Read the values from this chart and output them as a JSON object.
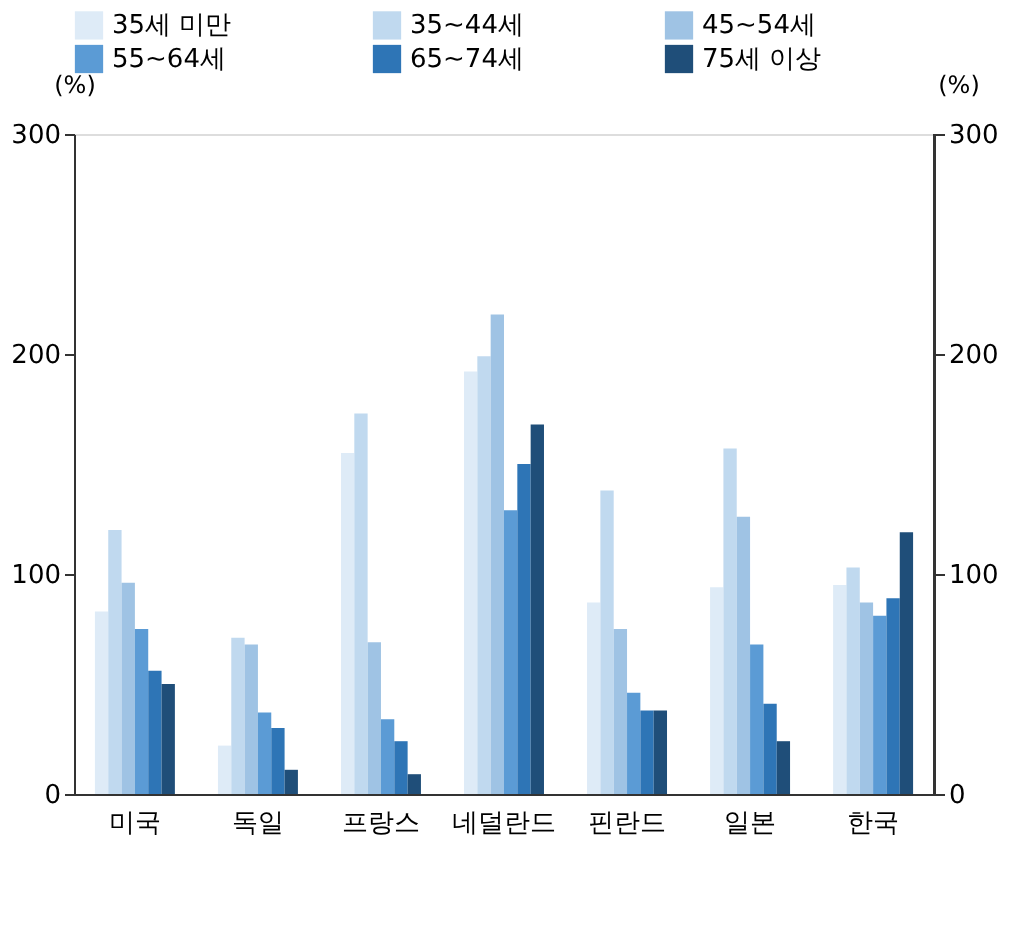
{
  "chart_data": {
    "type": "bar",
    "categories": [
      "미국",
      "독일",
      "프랑스",
      "네덜란드",
      "핀란드",
      "일본",
      "한국"
    ],
    "series": [
      {
        "name": "35세 미만",
        "color": "#deebf7",
        "values": [
          83,
          22,
          155,
          192,
          87,
          94,
          95
        ]
      },
      {
        "name": "35~44세",
        "color": "#c0d9ef",
        "values": [
          120,
          71,
          173,
          199,
          138,
          157,
          103
        ]
      },
      {
        "name": "45~54세",
        "color": "#9fc3e4",
        "values": [
          96,
          68,
          69,
          218,
          75,
          126,
          87
        ]
      },
      {
        "name": "55~64세",
        "color": "#5b9bd5",
        "values": [
          75,
          37,
          34,
          129,
          46,
          68,
          81
        ]
      },
      {
        "name": "65~74세",
        "color": "#2e75b6",
        "values": [
          56,
          30,
          24,
          150,
          38,
          41,
          89
        ]
      },
      {
        "name": "75세 이상",
        "color": "#1f4e79",
        "values": [
          50,
          11,
          9,
          168,
          38,
          24,
          119
        ]
      }
    ],
    "ylabel": "(%)",
    "y2label": "(%)",
    "ylim": [
      0,
      300
    ],
    "yticks": [
      0,
      100,
      200,
      300
    ],
    "y2lim": [
      0,
      300
    ],
    "y2ticks": [
      0,
      100,
      200,
      300
    ],
    "legend": "top"
  }
}
